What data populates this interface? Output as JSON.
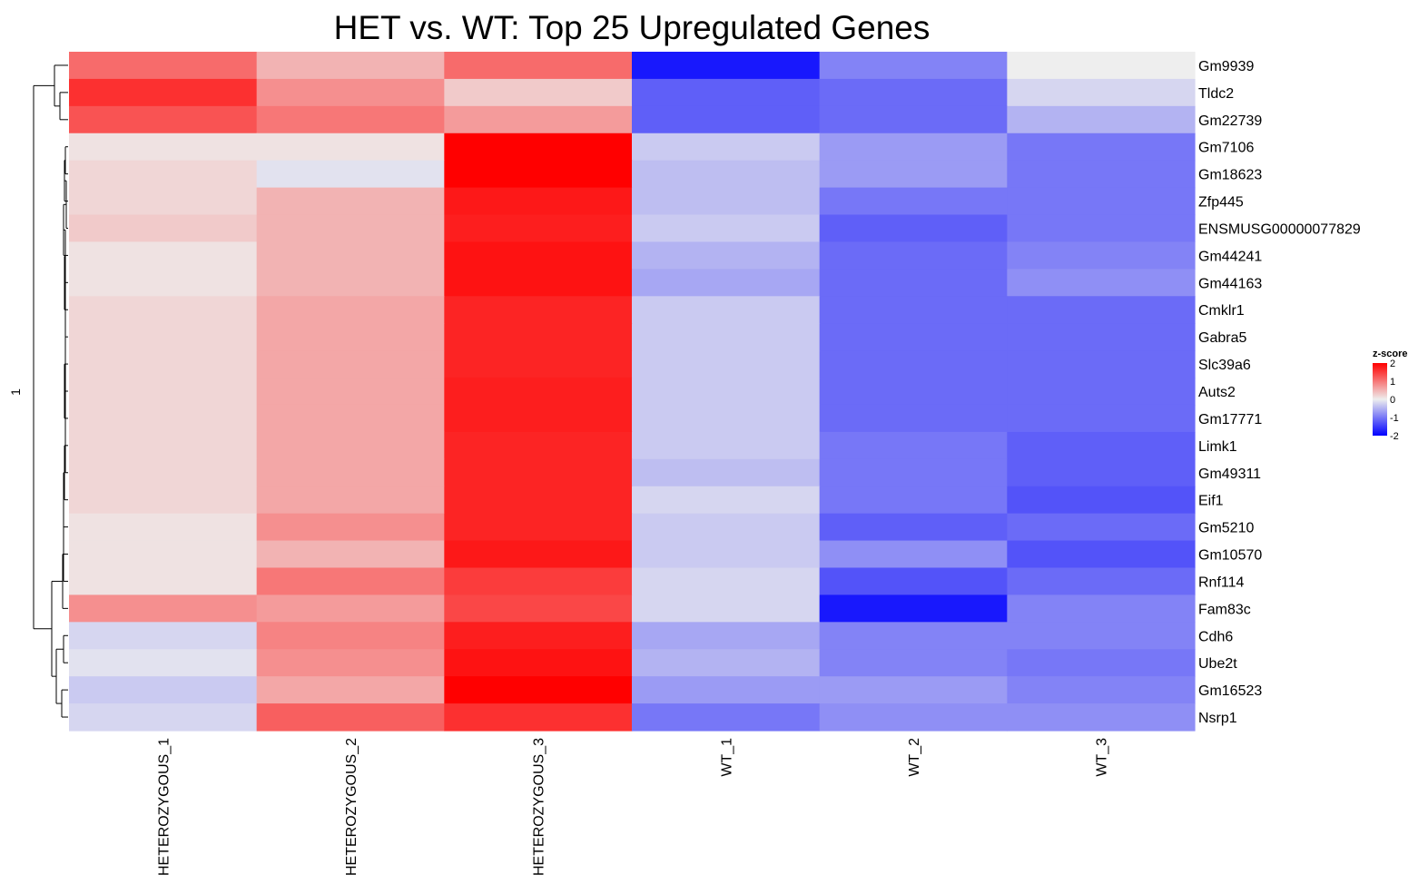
{
  "chart_data": {
    "type": "heatmap",
    "title": "HET vs. WT: Top 25 Upregulated Genes",
    "columns": [
      "HETEROZYGOUS_1",
      "HETEROZYGOUS_2",
      "HETEROZYGOUS_3",
      "WT_1",
      "WT_2",
      "WT_3"
    ],
    "rows": [
      "Gm9939",
      "Tldc2",
      "Gm22739",
      "Gm7106",
      "Gm18623",
      "Zfp445",
      "ENSMUSG00000077829",
      "Gm44241",
      "Gm44163",
      "Cmklr1",
      "Gabra5",
      "Slc39a6",
      "Auts2",
      "Gm17771",
      "Limk1",
      "Gm49311",
      "Eif1",
      "Gm5210",
      "Gm10570",
      "Rnf114",
      "Fam83c",
      "Cdh6",
      "Ube2t",
      "Gm16523",
      "Nsrp1"
    ],
    "values": [
      [
        1.1,
        0.5,
        1.1,
        -1.8,
        -0.9,
        0.0
      ],
      [
        1.6,
        0.8,
        0.3,
        -1.2,
        -1.1,
        -0.2
      ],
      [
        1.3,
        1.0,
        0.7,
        -1.2,
        -1.1,
        -0.5
      ],
      [
        0.1,
        0.1,
        2.0,
        -0.3,
        -0.7,
        -1.0
      ],
      [
        0.2,
        -0.1,
        2.0,
        -0.4,
        -0.7,
        -1.0
      ],
      [
        0.2,
        0.5,
        1.8,
        -0.4,
        -1.0,
        -1.0
      ],
      [
        0.3,
        0.5,
        1.75,
        -0.3,
        -1.2,
        -1.0
      ],
      [
        0.1,
        0.5,
        1.85,
        -0.5,
        -1.1,
        -0.9
      ],
      [
        0.1,
        0.5,
        1.85,
        -0.6,
        -1.1,
        -0.8
      ],
      [
        0.2,
        0.6,
        1.7,
        -0.3,
        -1.1,
        -1.1
      ],
      [
        0.2,
        0.6,
        1.7,
        -0.3,
        -1.1,
        -1.1
      ],
      [
        0.2,
        0.6,
        1.7,
        -0.3,
        -1.1,
        -1.1
      ],
      [
        0.2,
        0.6,
        1.75,
        -0.3,
        -1.1,
        -1.1
      ],
      [
        0.2,
        0.6,
        1.75,
        -0.3,
        -1.1,
        -1.1
      ],
      [
        0.2,
        0.6,
        1.7,
        -0.3,
        -1.0,
        -1.2
      ],
      [
        0.2,
        0.6,
        1.7,
        -0.4,
        -1.0,
        -1.2
      ],
      [
        0.2,
        0.6,
        1.7,
        -0.2,
        -1.0,
        -1.3
      ],
      [
        0.1,
        0.8,
        1.7,
        -0.3,
        -1.2,
        -1.1
      ],
      [
        0.1,
        0.5,
        1.8,
        -0.3,
        -0.8,
        -1.3
      ],
      [
        0.1,
        1.0,
        1.5,
        -0.2,
        -1.3,
        -1.1
      ],
      [
        0.8,
        0.7,
        1.4,
        -0.2,
        -1.8,
        -0.9
      ],
      [
        -0.2,
        0.9,
        1.75,
        -0.6,
        -0.9,
        -0.9
      ],
      [
        -0.1,
        0.8,
        1.85,
        -0.5,
        -0.9,
        -1.0
      ],
      [
        -0.3,
        0.6,
        2.0,
        -0.7,
        -0.7,
        -0.9
      ],
      [
        -0.2,
        1.2,
        1.6,
        -1.0,
        -0.8,
        -0.8
      ]
    ],
    "legend": {
      "title": "z-score",
      "ticks": [
        "2",
        "1",
        "0",
        "-1",
        "-2"
      ],
      "range": [
        -2,
        2
      ],
      "position": "right"
    },
    "colorscale": {
      "low": "#0000ff",
      "mid": "#eeeeee",
      "high": "#ff0000"
    },
    "row_dendrogram_label": "1",
    "grid": false
  }
}
